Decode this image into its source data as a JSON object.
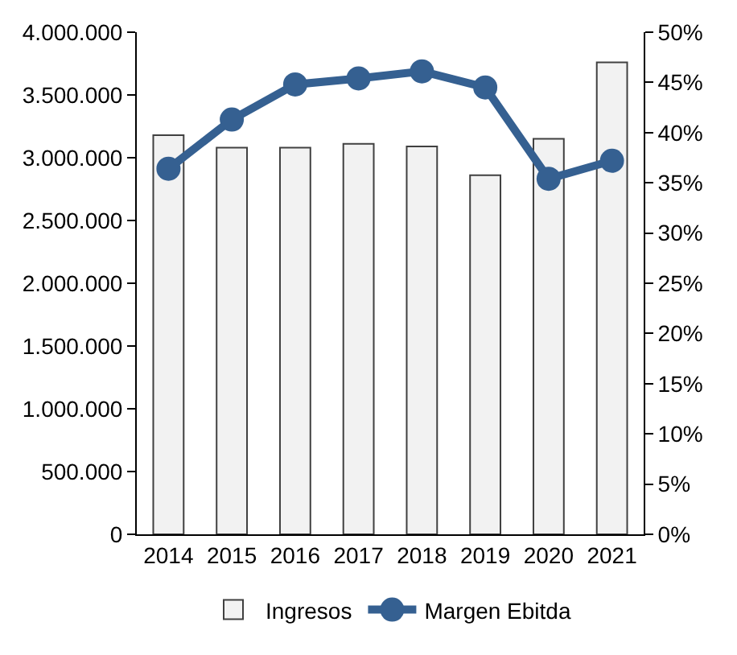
{
  "chart_data": {
    "type": "bar",
    "categories": [
      "2014",
      "2015",
      "2016",
      "2017",
      "2018",
      "2019",
      "2020",
      "2021"
    ],
    "series": [
      {
        "name": "Ingresos",
        "color": "#f2f2f2",
        "values": [
          3180000,
          3080000,
          3080000,
          3110000,
          3090000,
          2860000,
          3150000,
          3760000
        ]
      },
      {
        "name": "Margen Ebitda",
        "type": "line",
        "axis": "y2",
        "color": "#356091",
        "marker": "circle",
        "values": [
          36.4,
          41.3,
          44.8,
          45.4,
          46.1,
          44.5,
          35.4,
          37.2
        ]
      }
    ],
    "ylim": [
      0,
      4000000
    ],
    "yticks": [
      {
        "value": 0,
        "label": "0"
      },
      {
        "value": 500000,
        "label": "500.000"
      },
      {
        "value": 1000000,
        "label": "1.000.000"
      },
      {
        "value": 1500000,
        "label": "1.500.000"
      },
      {
        "value": 2000000,
        "label": "2.000.000"
      },
      {
        "value": 2500000,
        "label": "2.500.000"
      },
      {
        "value": 3000000,
        "label": "3.000.000"
      },
      {
        "value": 3500000,
        "label": "3.500.000"
      },
      {
        "value": 4000000,
        "label": "4.000.000"
      }
    ],
    "y2lim": [
      0,
      50
    ],
    "y2ticks": [
      {
        "value": 0,
        "label": "0%"
      },
      {
        "value": 5,
        "label": "5%"
      },
      {
        "value": 10,
        "label": "10%"
      },
      {
        "value": 15,
        "label": "15%"
      },
      {
        "value": 20,
        "label": "20%"
      },
      {
        "value": 25,
        "label": "25%"
      },
      {
        "value": 30,
        "label": "30%"
      },
      {
        "value": 35,
        "label": "35%"
      },
      {
        "value": 40,
        "label": "40%"
      },
      {
        "value": 45,
        "label": "45%"
      },
      {
        "value": 50,
        "label": "50%"
      }
    ],
    "legend": "bottom"
  }
}
